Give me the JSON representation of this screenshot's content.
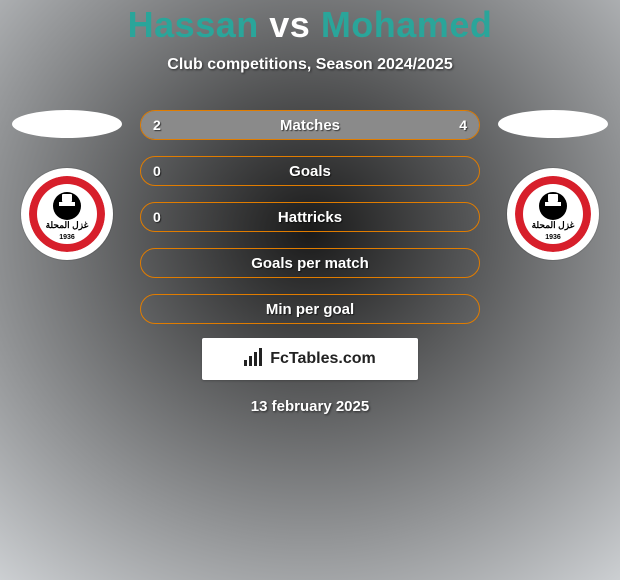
{
  "background": {
    "dark": "#1a1a1a",
    "light": "#d0d3d6"
  },
  "title": {
    "player1": "Hassan",
    "vs": "vs",
    "player2": "Mohamed",
    "color_p1": "#2aa59a",
    "color_vs": "#ffffff",
    "color_p2": "#2aa59a",
    "fontsize": 36
  },
  "subtitle": "Club competitions, Season 2024/2025",
  "accent_color": "#e07c00",
  "border_color": "#e07c00",
  "fill_left_color": "#8a8a8a",
  "fill_right_color": "#8a8a8a",
  "label_color": "#ffffff",
  "club_badge": {
    "outer_bg": "#ffffff",
    "primary": "#d71f2b",
    "secondary": "#000000",
    "text_ar": "غزل المحلة",
    "year": "1936"
  },
  "stats": [
    {
      "label": "Matches",
      "left_value": "2",
      "right_value": "4",
      "left_pct": 33,
      "right_pct": 67,
      "show_left": true,
      "show_right": true
    },
    {
      "label": "Goals",
      "left_value": "0",
      "right_value": "",
      "left_pct": 0,
      "right_pct": 0,
      "show_left": true,
      "show_right": false
    },
    {
      "label": "Hattricks",
      "left_value": "0",
      "right_value": "",
      "left_pct": 0,
      "right_pct": 0,
      "show_left": true,
      "show_right": false
    },
    {
      "label": "Goals per match",
      "left_value": "",
      "right_value": "",
      "left_pct": 0,
      "right_pct": 0,
      "show_left": false,
      "show_right": false
    },
    {
      "label": "Min per goal",
      "left_value": "",
      "right_value": "",
      "left_pct": 0,
      "right_pct": 0,
      "show_left": false,
      "show_right": false
    }
  ],
  "branding": {
    "text": "FcTables.com"
  },
  "date": "13 february 2025"
}
